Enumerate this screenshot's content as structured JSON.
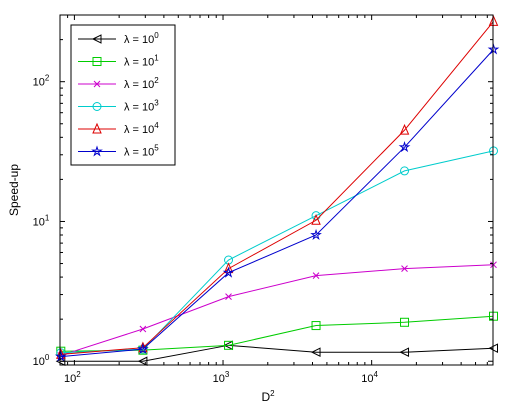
{
  "chart_data": {
    "type": "line",
    "xscale": "log",
    "yscale": "log",
    "xlim": [
      80,
      65536
    ],
    "ylim": [
      0.94,
      300
    ],
    "xlabel_base": "D",
    "xlabel_exp": "2",
    "ylabel": "Speed-up",
    "x_ticks": [
      {
        "value": 100,
        "base": "10",
        "exp": "2"
      },
      {
        "value": 1000,
        "base": "10",
        "exp": "3"
      },
      {
        "value": 10000,
        "base": "10",
        "exp": "4"
      }
    ],
    "y_ticks": [
      {
        "value": 1,
        "base": "10",
        "exp": "0"
      },
      {
        "value": 10,
        "base": "10",
        "exp": "1"
      },
      {
        "value": 100,
        "base": "10",
        "exp": "2"
      }
    ],
    "grid": false,
    "legend_position": "top-left",
    "x": [
      81,
      289,
      1089,
      4225,
      16641,
      66049
    ],
    "series": [
      {
        "label_prefix": "λ = 10",
        "label_exp": "0",
        "color": "#000000",
        "marker": "triangle-left",
        "values": [
          1.0,
          1.0,
          1.3,
          1.16,
          1.16,
          1.24
        ]
      },
      {
        "label_prefix": "λ = 10",
        "label_exp": "1",
        "color": "#00cc00",
        "marker": "square",
        "values": [
          1.18,
          1.2,
          1.3,
          1.8,
          1.9,
          2.1
        ]
      },
      {
        "label_prefix": "λ = 10",
        "label_exp": "2",
        "color": "#cc00cc",
        "marker": "x",
        "values": [
          1.1,
          1.7,
          2.9,
          4.1,
          4.6,
          4.9
        ]
      },
      {
        "label_prefix": "λ = 10",
        "label_exp": "3",
        "color": "#00cccc",
        "marker": "circle",
        "values": [
          1.15,
          1.22,
          5.3,
          11.0,
          23.0,
          32.0
        ]
      },
      {
        "label_prefix": "λ = 10",
        "label_exp": "4",
        "color": "#dd0000",
        "marker": "triangle-up",
        "values": [
          1.12,
          1.25,
          4.6,
          10.2,
          45.0,
          270.0
        ]
      },
      {
        "label_prefix": "λ = 10",
        "label_exp": "5",
        "color": "#0000cc",
        "marker": "star",
        "values": [
          1.08,
          1.22,
          4.3,
          8.0,
          34.0,
          170.0
        ]
      }
    ]
  }
}
